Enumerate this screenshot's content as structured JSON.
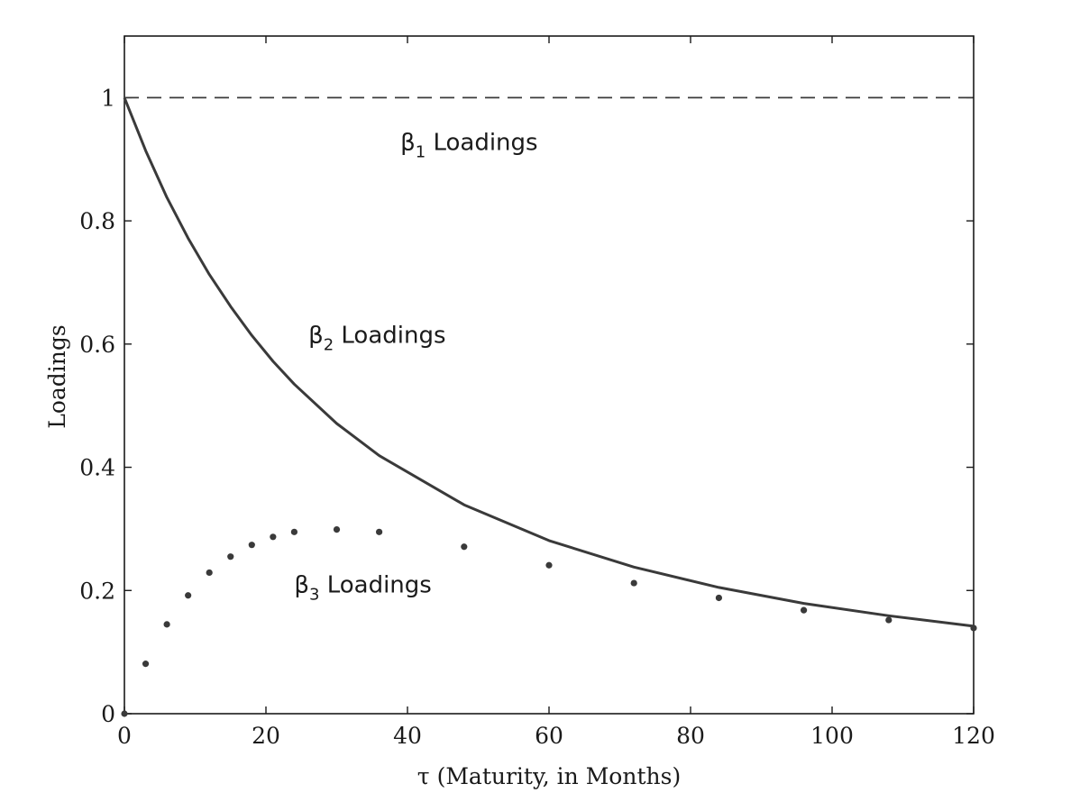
{
  "chart_data": {
    "type": "line",
    "xlabel": "τ (Maturity, in Months)",
    "ylabel": "Loadings",
    "xlim": [
      0,
      120
    ],
    "ylim": [
      0,
      1.1
    ],
    "x_ticks": [
      0,
      20,
      40,
      60,
      80,
      100,
      120
    ],
    "x_tick_labels": [
      "0",
      "20",
      "40",
      "60",
      "80",
      "100",
      "120"
    ],
    "y_ticks": [
      0,
      0.2,
      0.4,
      0.6,
      0.8,
      1
    ],
    "y_tick_labels": [
      "0",
      "0.2",
      "0.4",
      "0.6",
      "0.8",
      "1"
    ],
    "grid": false,
    "colors": {
      "line": "#3a3a3a",
      "axis": "#1a1a1a"
    },
    "series": [
      {
        "key": "b1",
        "style": "dashed",
        "label_sym": "β",
        "label_sub": "1",
        "label_text": " Loadings",
        "label_at": [
          39,
          0.915
        ],
        "x": [
          0,
          120
        ],
        "y": [
          1,
          1
        ]
      },
      {
        "key": "b2",
        "style": "solid",
        "label_sym": "β",
        "label_sub": "2",
        "label_text": " Loadings",
        "label_at": [
          26,
          0.602
        ],
        "x": [
          0,
          3,
          6,
          9,
          12,
          15,
          18,
          21,
          24,
          30,
          36,
          48,
          60,
          72,
          84,
          96,
          108,
          120
        ],
        "y": [
          1,
          0.914,
          0.838,
          0.772,
          0.713,
          0.661,
          0.614,
          0.572,
          0.535,
          0.471,
          0.419,
          0.339,
          0.281,
          0.238,
          0.205,
          0.179,
          0.159,
          0.142
        ]
      },
      {
        "key": "b3",
        "style": "dots",
        "label_sym": "β",
        "label_sub": "3",
        "label_text": " Loadings",
        "label_at": [
          24,
          0.197
        ],
        "x": [
          0,
          3,
          6,
          9,
          12,
          15,
          18,
          21,
          24,
          30,
          36,
          48,
          60,
          72,
          84,
          96,
          108,
          120
        ],
        "y": [
          0,
          0.081,
          0.145,
          0.192,
          0.229,
          0.255,
          0.274,
          0.287,
          0.295,
          0.299,
          0.295,
          0.271,
          0.241,
          0.212,
          0.188,
          0.168,
          0.152,
          0.139
        ]
      }
    ]
  }
}
